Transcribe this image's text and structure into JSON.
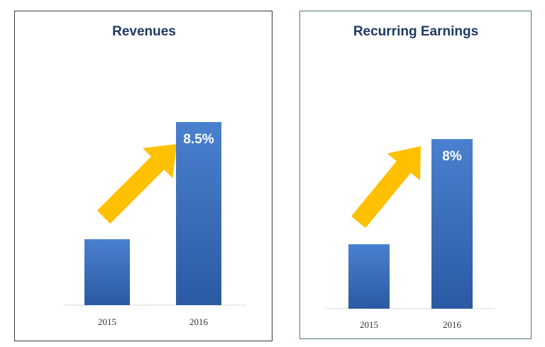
{
  "colors": {
    "bar_top": "#4a80cf",
    "bar_bottom": "#2b5aa3",
    "arrow": "#ffc000",
    "axis": "#d9d9d9"
  },
  "chart_data": [
    {
      "type": "bar",
      "title": "Revenues",
      "categories": [
        "2015",
        "2016"
      ],
      "values": [
        36,
        100
      ],
      "ylim": [
        0,
        115
      ],
      "data_labels": [
        "",
        "8.5%"
      ],
      "annotation": {
        "icon": "arrow-up-right-icon",
        "color": "#ffc000"
      },
      "grid": false,
      "legend": "none"
    },
    {
      "type": "bar",
      "title": "Recurring Earnings",
      "categories": [
        "2015",
        "2016"
      ],
      "values": [
        38,
        100
      ],
      "ylim": [
        0,
        115
      ],
      "data_labels": [
        "",
        "8%"
      ],
      "annotation": {
        "icon": "arrow-up-right-icon",
        "color": "#ffc000"
      },
      "grid": false,
      "legend": "none"
    }
  ]
}
